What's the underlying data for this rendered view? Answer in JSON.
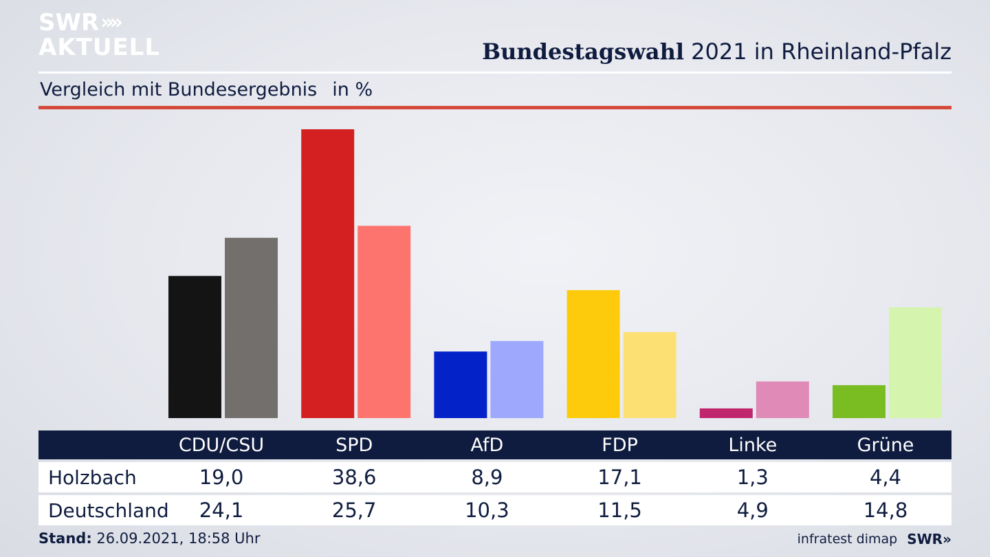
{
  "logo": {
    "line1": "SWR",
    "arrows": "»",
    "line2": "AKTUELL"
  },
  "header": {
    "title_bold": "Bundestagswahl",
    "title_rest": " 2021 in Rheinland-Pfalz"
  },
  "subtitle": {
    "text": "Vergleich mit Bundesergebnis",
    "unit": "in %"
  },
  "chart_data": {
    "type": "bar",
    "categories": [
      "CDU/CSU",
      "SPD",
      "AfD",
      "FDP",
      "Linke",
      "Grüne"
    ],
    "series": [
      {
        "name": "Holzbach",
        "values": [
          19.0,
          38.6,
          8.9,
          17.1,
          1.3,
          4.4
        ],
        "colors": [
          "#141414",
          "#d42020",
          "#0322c8",
          "#fdcb0c",
          "#c0266e",
          "#79bd22"
        ]
      },
      {
        "name": "Deutschland",
        "values": [
          24.1,
          25.7,
          10.3,
          11.5,
          4.9,
          14.8
        ],
        "colors": [
          "#726f6d",
          "#fd746e",
          "#9ea9fd",
          "#fde074",
          "#e08ab8",
          "#d5f4ad"
        ]
      }
    ],
    "value_labels": [
      [
        "19,0",
        "38,6",
        "8,9",
        "17,1",
        "1,3",
        "4,4"
      ],
      [
        "24,1",
        "25,7",
        "10,3",
        "11,5",
        "4,9",
        "14,8"
      ]
    ],
    "ylim": [
      0,
      38.6
    ],
    "grid": false,
    "legend": "table-below"
  },
  "footer": {
    "stand_label": "Stand:",
    "stand_value": " 26.09.2021, 18:58 Uhr",
    "source": "infratest dimap",
    "brand": "SWR»"
  }
}
